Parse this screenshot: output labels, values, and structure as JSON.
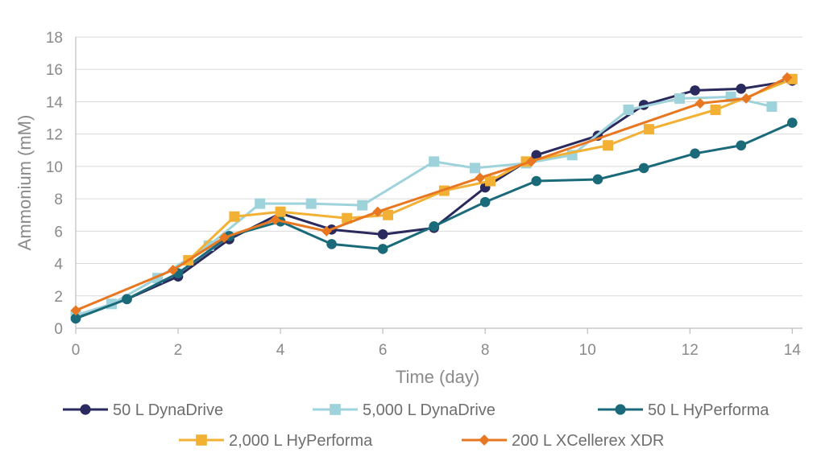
{
  "chart_data": {
    "type": "line",
    "title": "",
    "xlabel": "Time (day)",
    "ylabel": "Ammonium (mM)",
    "xlim": [
      0,
      14.2
    ],
    "ylim": [
      0,
      18
    ],
    "xticks": [
      0,
      2,
      4,
      6,
      8,
      10,
      12,
      14
    ],
    "yticks": [
      0,
      2,
      4,
      6,
      8,
      10,
      12,
      14,
      16,
      18
    ],
    "grid": true,
    "legend_position": "bottom",
    "series": [
      {
        "name": "50 L DynaDrive",
        "color": "#2b2a5e",
        "marker": "circle",
        "x": [
          0,
          1,
          2,
          3,
          4,
          5,
          6,
          7,
          8,
          9,
          10.2,
          11.1,
          12.1,
          13,
          14
        ],
        "y": [
          0.7,
          1.8,
          3.2,
          5.5,
          7.1,
          6.1,
          5.8,
          6.2,
          8.7,
          10.7,
          11.9,
          13.8,
          14.7,
          14.8,
          15.3
        ]
      },
      {
        "name": "5,000 L DynaDrive",
        "color": "#9fd3dc",
        "marker": "square",
        "x": [
          0,
          0.7,
          1.6,
          2.6,
          3.6,
          4.6,
          5.6,
          7,
          7.8,
          8.8,
          9.7,
          10.8,
          11.8,
          12.8,
          13.6
        ],
        "y": [
          0.8,
          1.5,
          3.1,
          5.1,
          7.7,
          7.7,
          7.6,
          10.3,
          9.9,
          10.2,
          10.7,
          13.5,
          14.2,
          14.3,
          13.7
        ]
      },
      {
        "name": "50 L HyPerforma",
        "color": "#1b6a7a",
        "marker": "circle",
        "x": [
          0,
          1,
          2,
          3,
          4,
          5,
          6,
          7,
          8,
          9,
          10.2,
          11.1,
          12.1,
          13,
          14
        ],
        "y": [
          0.6,
          1.8,
          3.4,
          5.7,
          6.6,
          5.2,
          4.9,
          6.3,
          7.8,
          9.1,
          9.2,
          9.9,
          10.8,
          11.3,
          12.7
        ]
      },
      {
        "name": "2,000 L HyPerforma",
        "color": "#f2b134",
        "marker": "square",
        "x": [
          2.2,
          3.1,
          4.0,
          5.3,
          6.1,
          7.2,
          8.1,
          8.8,
          10.4,
          11.2,
          12.5,
          14
        ],
        "y": [
          4.2,
          6.9,
          7.2,
          6.8,
          7.0,
          8.5,
          9.1,
          10.3,
          11.3,
          12.3,
          13.5,
          15.4
        ]
      },
      {
        "name": "200 L XCellerex XDR",
        "color": "#e87722",
        "marker": "diamond",
        "x": [
          0,
          1.9,
          2.9,
          3.9,
          4.9,
          5.9,
          7.9,
          8.9,
          12.2,
          13.1,
          13.9
        ],
        "y": [
          1.1,
          3.6,
          5.6,
          6.7,
          6.0,
          7.2,
          9.3,
          10.3,
          13.9,
          14.2,
          15.5
        ]
      }
    ]
  }
}
